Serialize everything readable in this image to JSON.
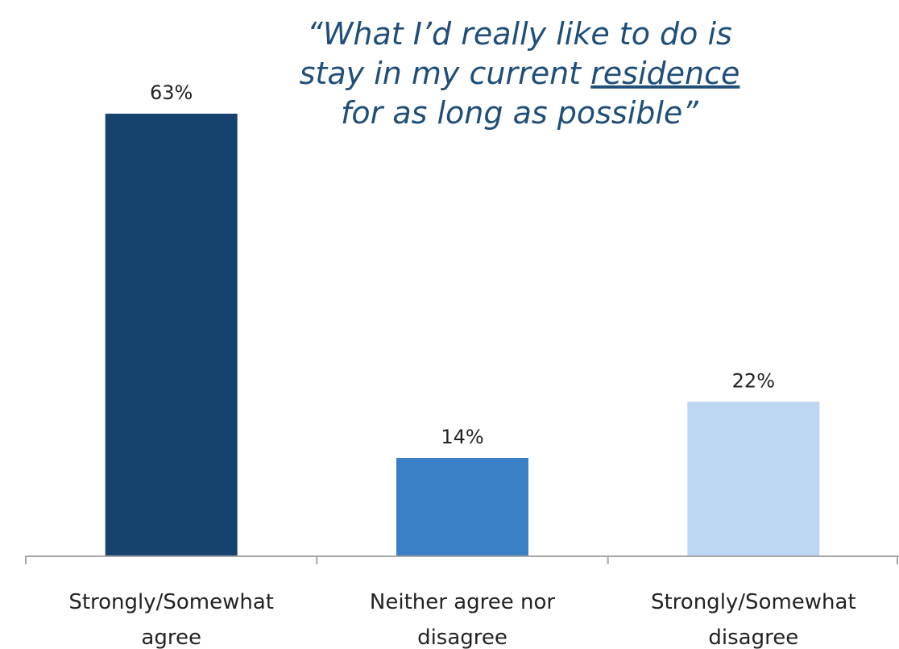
{
  "quote": {
    "line1": "“What I’d really like to do is",
    "line2_before": "stay in my current ",
    "line2_underlined": "residence",
    "line3": "for as long as possible”"
  },
  "colors": {
    "quote_text": "#1f4e79",
    "axis": "#a6a6a6",
    "label_text": "#222222"
  },
  "chart_data": {
    "type": "bar",
    "categories": [
      [
        "Strongly/Somewhat",
        "agree"
      ],
      [
        "Neither agree nor",
        "disagree"
      ],
      [
        "Strongly/Somewhat",
        "disagree"
      ]
    ],
    "values": [
      63,
      14,
      22
    ],
    "value_labels": [
      "63%",
      "14%",
      "22%"
    ],
    "bar_colors": [
      "#16426e",
      "#3a80c6",
      "#bdd7f2"
    ],
    "ylim": [
      0,
      70
    ],
    "grid": false,
    "legend": "none",
    "title": "",
    "xlabel": "",
    "ylabel": ""
  }
}
